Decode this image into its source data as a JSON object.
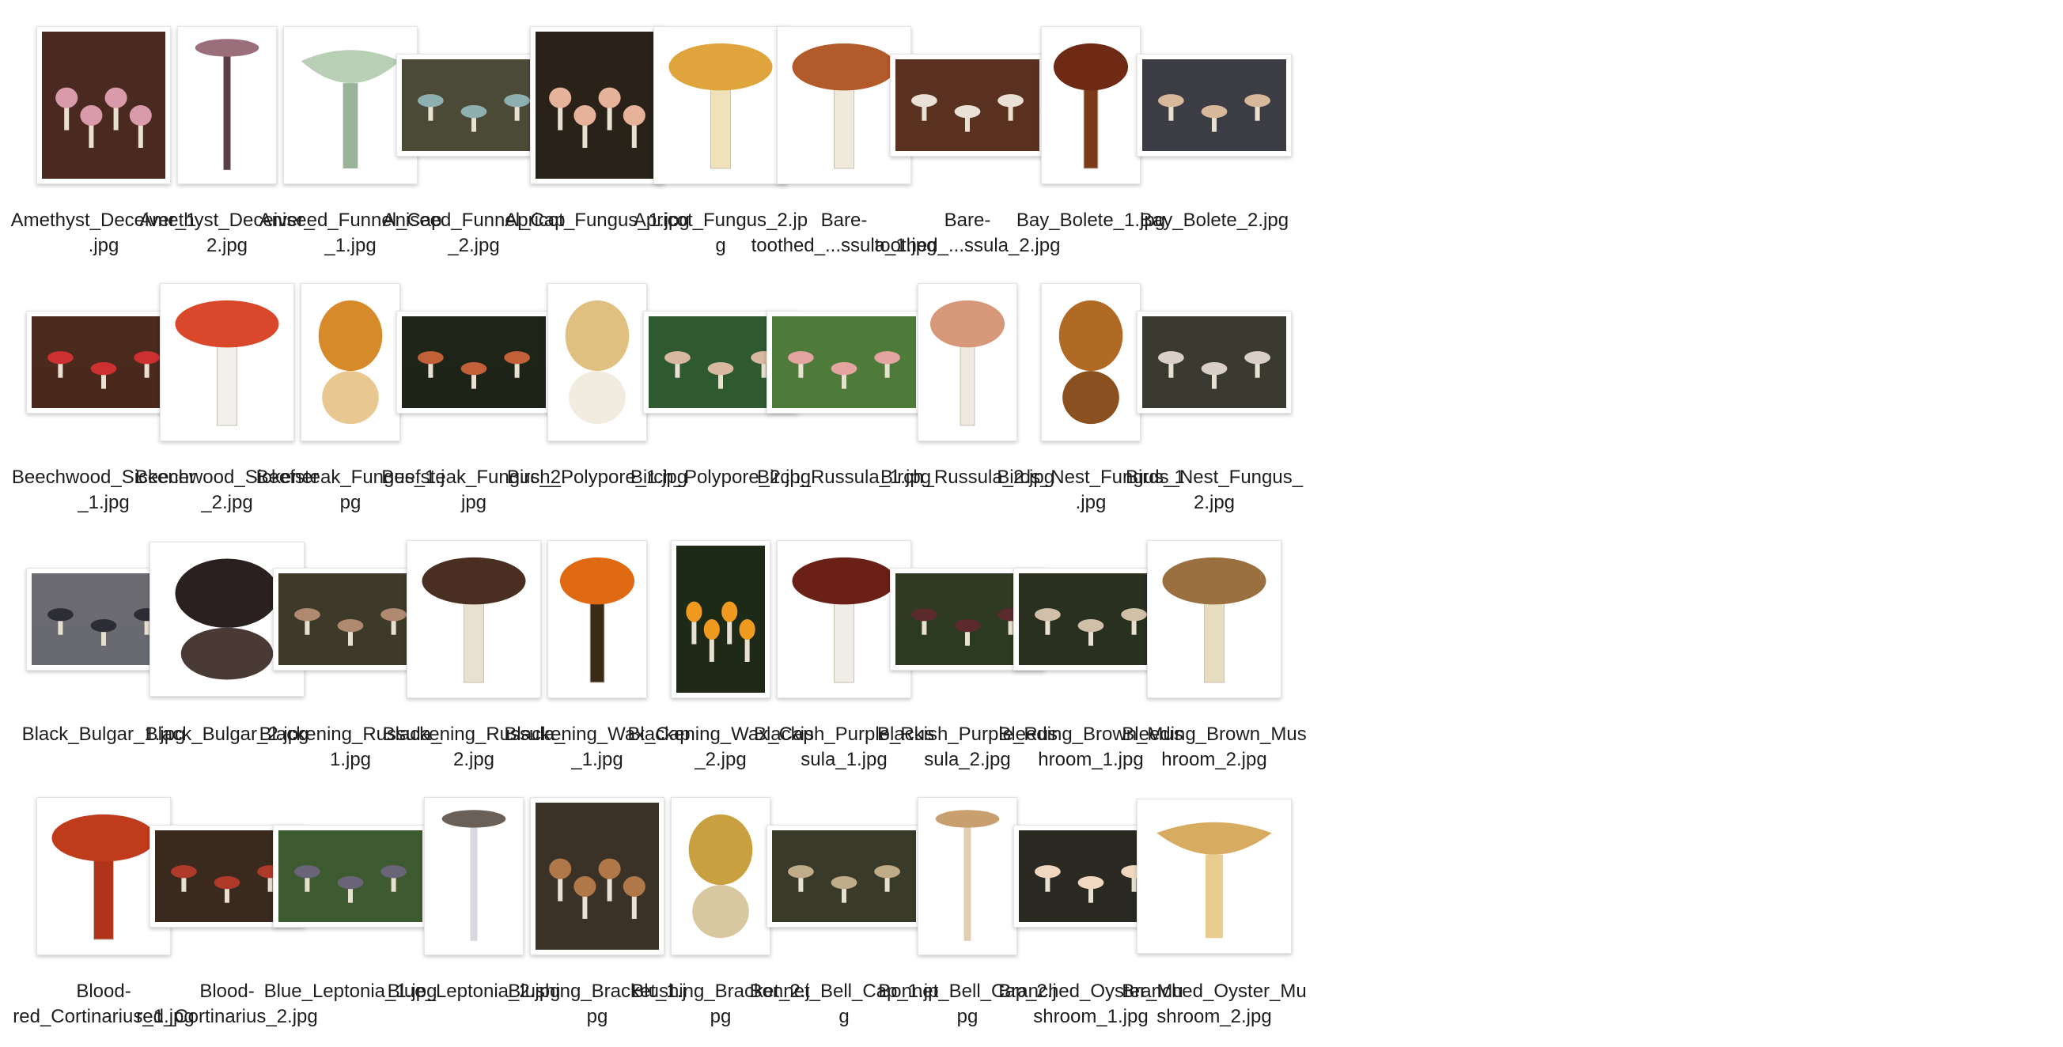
{
  "window": {
    "view": "Icon view",
    "folder_contents": "mushroom image files"
  },
  "files": [
    {
      "name": "Amethyst_Deceiver_1\n.jpg",
      "thumb": "photo-group",
      "shape": "portrait",
      "colors": [
        "#d99aaa",
        "#4a2a20"
      ]
    },
    {
      "name": "Amethyst_Deceiver_\n2.jpg",
      "thumb": "illustration-tall",
      "shape": "narrow",
      "colors": [
        "#9a6e7a",
        "#5a3e46"
      ]
    },
    {
      "name": "Aniseed_Funnel_Cap\n_1.jpg",
      "thumb": "illustration-funnel",
      "shape": "portrait",
      "colors": [
        "#b9cfb6",
        "#9bb39a"
      ]
    },
    {
      "name": "Aniseed_Funnel_Cap\n_2.jpg",
      "thumb": "photo-ground",
      "shape": "landscape",
      "colors": [
        "#8fb0b0",
        "#4b4a38"
      ]
    },
    {
      "name": "Apricot_Fungus_1.jpg",
      "thumb": "photo-group",
      "shape": "portrait",
      "colors": [
        "#e6b39a",
        "#2a2218"
      ]
    },
    {
      "name": "Apricot_Fungus_2.jp\ng",
      "thumb": "illustration-cap",
      "shape": "portrait",
      "colors": [
        "#e0a43c",
        "#f0e2b8"
      ]
    },
    {
      "name": "Bare-\ntoothed_...ssula_1.jpg",
      "thumb": "illustration-cap",
      "shape": "portrait",
      "colors": [
        "#b35a2a",
        "#efe9dc"
      ]
    },
    {
      "name": "Bare-\ntoothed_...ssula_2.jpg",
      "thumb": "photo-ground",
      "shape": "landscape",
      "colors": [
        "#e9e1d6",
        "#5a3020"
      ]
    },
    {
      "name": "Bay_Bolete_1.jpg",
      "thumb": "illustration-cap",
      "shape": "narrow",
      "colors": [
        "#6e2a14",
        "#7a3a18"
      ]
    },
    {
      "name": "Bay_Bolete_2.jpg",
      "thumb": "photo-ground",
      "shape": "landscape",
      "colors": [
        "#d8b89a",
        "#3c3c44"
      ]
    },
    {
      "name": "Beechwood_Sickener\n_1.jpg",
      "thumb": "photo-ground",
      "shape": "landscape",
      "colors": [
        "#cc3030",
        "#4a2a1c"
      ]
    },
    {
      "name": "Beechwood_Sickener\n_2.jpg",
      "thumb": "illustration-cap",
      "shape": "portrait",
      "colors": [
        "#d9482a",
        "#f2f0ea"
      ]
    },
    {
      "name": "Beefsteak_Fungus_1.j\npg",
      "thumb": "illustration-blob",
      "shape": "narrow",
      "colors": [
        "#d68a2a",
        "#e8c890"
      ]
    },
    {
      "name": "Beefsteak_Fungus_2.\njpg",
      "thumb": "photo-ground",
      "shape": "landscape",
      "colors": [
        "#c2603a",
        "#1e2418"
      ]
    },
    {
      "name": "Birch_Polypore_1.jpg",
      "thumb": "illustration-blob",
      "shape": "narrow",
      "colors": [
        "#e0c080",
        "#f2ece0"
      ]
    },
    {
      "name": "Birch_Polypore_2.jpg",
      "thumb": "photo-ground",
      "shape": "landscape",
      "colors": [
        "#d8b8a0",
        "#2f5a30"
      ]
    },
    {
      "name": "Birch_Russula_1.jpg",
      "thumb": "photo-ground",
      "shape": "landscape",
      "colors": [
        "#e4a4a0",
        "#4e7a3a"
      ]
    },
    {
      "name": "Birch_Russula_2.jpg",
      "thumb": "illustration-cap",
      "shape": "narrow",
      "colors": [
        "#d69878",
        "#efe8de"
      ]
    },
    {
      "name": "Birds_Nest_Fungus_1\n.jpg",
      "thumb": "illustration-blob",
      "shape": "narrow",
      "colors": [
        "#b06a24",
        "#8a5020"
      ]
    },
    {
      "name": "Birds_Nest_Fungus_\n2.jpg",
      "thumb": "photo-ground",
      "shape": "landscape",
      "colors": [
        "#d8d0c8",
        "#3a3a30"
      ]
    },
    {
      "name": "Black_Bulgar_1.jpg",
      "thumb": "photo-ground",
      "shape": "landscape",
      "colors": [
        "#2c2c34",
        "#6a6a70"
      ]
    },
    {
      "name": "Black_Bulgar_2.jpg",
      "thumb": "illustration-blob",
      "shape": "square",
      "colors": [
        "#2a2020",
        "#4a3a36"
      ]
    },
    {
      "name": "Blackening_Russula_\n1.jpg",
      "thumb": "photo-ground",
      "shape": "landscape",
      "colors": [
        "#b08a70",
        "#3e3a2a"
      ]
    },
    {
      "name": "Blackening_Russula_\n2.jpg",
      "thumb": "illustration-cap",
      "shape": "portrait",
      "colors": [
        "#4a2e22",
        "#e8e0d0"
      ]
    },
    {
      "name": "Blackening_Wax_Cap\n_1.jpg",
      "thumb": "illustration-cap",
      "shape": "narrow",
      "colors": [
        "#e06a14",
        "#3a2a18"
      ]
    },
    {
      "name": "Blackening_Wax_Cap\n_2.jpg",
      "thumb": "photo-group",
      "shape": "narrow",
      "colors": [
        "#f09a20",
        "#1e2a18"
      ]
    },
    {
      "name": "Blackish_Purple_Rus\nsula_1.jpg",
      "thumb": "illustration-cap",
      "shape": "portrait",
      "colors": [
        "#6a2016",
        "#f0ece6"
      ]
    },
    {
      "name": "Blackish_Purple_Rus\nsula_2.jpg",
      "thumb": "photo-ground",
      "shape": "landscape",
      "colors": [
        "#5a2a2c",
        "#2e3a22"
      ]
    },
    {
      "name": "Bleeding_Brown_Mus\nhroom_1.jpg",
      "thumb": "photo-ground",
      "shape": "landscape",
      "colors": [
        "#d0c0a8",
        "#2a3020"
      ]
    },
    {
      "name": "Bleeding_Brown_Mus\nhroom_2.jpg",
      "thumb": "illustration-cap",
      "shape": "portrait",
      "colors": [
        "#9a7040",
        "#e8dcc0"
      ]
    },
    {
      "name": "Blood-\nred_Cortinarius_1.jpg",
      "thumb": "illustration-cap",
      "shape": "portrait",
      "colors": [
        "#c03a1c",
        "#b0341a"
      ]
    },
    {
      "name": "Blood-\nred_Cortinarius_2.jpg",
      "thumb": "photo-ground",
      "shape": "landscape",
      "colors": [
        "#b03a2a",
        "#3a2a1e"
      ]
    },
    {
      "name": "Blue_Leptonia_1.jpg",
      "thumb": "photo-ground",
      "shape": "landscape",
      "colors": [
        "#6a6478",
        "#3e5a30"
      ]
    },
    {
      "name": "Blue_Leptonia_2.jpg",
      "thumb": "illustration-tall",
      "shape": "narrow",
      "colors": [
        "#6a6058",
        "#d8d8e0"
      ]
    },
    {
      "name": "Blushing_Bracket_1.j\npg",
      "thumb": "photo-group",
      "shape": "portrait",
      "colors": [
        "#b07848",
        "#3a3226"
      ]
    },
    {
      "name": "Blushing_Bracket_2.j\npg",
      "thumb": "illustration-blob",
      "shape": "narrow",
      "colors": [
        "#c8a040",
        "#d8c8a0"
      ]
    },
    {
      "name": "Bonnet_Bell_Cap_1.jp\ng",
      "thumb": "photo-ground",
      "shape": "landscape",
      "colors": [
        "#c0ac88",
        "#3a3a2a"
      ]
    },
    {
      "name": "Bonnet_Bell_Cap_2.j\npg",
      "thumb": "illustration-tall",
      "shape": "narrow",
      "colors": [
        "#c8a070",
        "#e0d0b0"
      ]
    },
    {
      "name": "Branched_Oyster_Mu\nshroom_1.jpg",
      "thumb": "photo-ground",
      "shape": "landscape",
      "colors": [
        "#f0d8c0",
        "#2a2a22"
      ]
    },
    {
      "name": "Branched_Oyster_Mu\nshroom_2.jpg",
      "thumb": "illustration-funnel",
      "shape": "square",
      "colors": [
        "#d8ac60",
        "#e8cc90"
      ]
    }
  ]
}
